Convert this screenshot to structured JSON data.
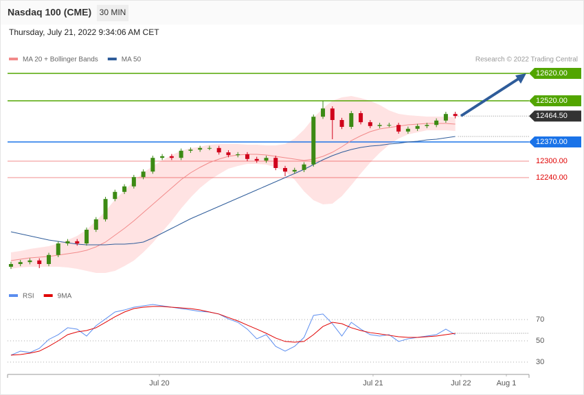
{
  "header": {
    "title": "Nasdaq 100 (CME)",
    "interval": "30 MIN",
    "timestamp": "Thursday, July 21, 2022 9:34:06 AM CET"
  },
  "chart_data": [
    {
      "type": "candlestick",
      "credit": "Research © 2022 Trading Central",
      "up_color": "#3c8a14",
      "down_color": "#d0021b",
      "ylim": [
        11850,
        12650
      ],
      "xlim": [
        -0.36,
        54.8
      ],
      "xticks": [
        {
          "value": 15.7,
          "label": "Jul 20"
        },
        {
          "value": 38.3,
          "label": "Jul 21"
        },
        {
          "value": 47.6,
          "label": "Jul 22"
        },
        {
          "value": 52.4,
          "label": "Aug 1"
        }
      ],
      "open": [
        11915,
        11925,
        11932,
        11938,
        11925,
        11958,
        12000,
        12008,
        12000,
        12050,
        12088,
        12162,
        12188,
        12208,
        12242,
        12262,
        12312,
        12318,
        12312,
        12338,
        12342,
        12348,
        12348,
        12332,
        12322,
        12325,
        12308,
        12302,
        12312,
        12275,
        12262,
        12268,
        12288,
        12462,
        12492,
        12450,
        12425,
        12475,
        12442,
        12428,
        12432,
        12432,
        12408,
        12418,
        12428,
        12432,
        12448,
        12472
      ],
      "high": [
        11933,
        11940,
        11946,
        11946,
        11966,
        12008,
        12016,
        12016,
        12058,
        12096,
        12170,
        12196,
        12216,
        12250,
        12270,
        12320,
        12326,
        12326,
        12346,
        12350,
        12356,
        12356,
        12356,
        12340,
        12333,
        12333,
        12316,
        12320,
        12320,
        12283,
        12276,
        12296,
        12470,
        12520,
        12500,
        12458,
        12483,
        12483,
        12450,
        12440,
        12440,
        12440,
        12426,
        12436,
        12440,
        12456,
        12480,
        12480
      ],
      "low": [
        11907,
        11917,
        11924,
        11910,
        11917,
        11950,
        11992,
        11992,
        11992,
        12042,
        12080,
        12154,
        12180,
        12200,
        12234,
        12254,
        12304,
        12304,
        12304,
        12330,
        12334,
        12340,
        12324,
        12314,
        12314,
        12300,
        12294,
        12294,
        12267,
        12245,
        12254,
        12260,
        12280,
        12454,
        12380,
        12417,
        12417,
        12434,
        12420,
        12420,
        12424,
        12400,
        12400,
        12410,
        12420,
        12424,
        12440,
        12456
      ],
      "close": [
        11925,
        11932,
        11938,
        11925,
        11958,
        12000,
        12008,
        12000,
        12050,
        12088,
        12162,
        12188,
        12208,
        12242,
        12262,
        12312,
        12318,
        12312,
        12338,
        12342,
        12348,
        12348,
        12332,
        12322,
        12325,
        12308,
        12302,
        12312,
        12275,
        12262,
        12268,
        12288,
        12462,
        12492,
        12450,
        12425,
        12475,
        12442,
        12428,
        12432,
        12432,
        12408,
        12418,
        12428,
        12432,
        12448,
        12472,
        12464.5
      ],
      "series": [
        {
          "name": "MA 20 + Bollinger Bands",
          "color": "#f28a8a",
          "band_color": "#ffe3e3",
          "values": [
            11937.5,
            11942.5,
            11947.5,
            11950,
            11952.5,
            11957.5,
            11962.5,
            11967.5,
            11975,
            11987.5,
            12005,
            12030,
            12055,
            12082.5,
            12112.5,
            12142.5,
            12172.5,
            12202.5,
            12232.5,
            12257.5,
            12277.5,
            12295,
            12307.5,
            12317.5,
            12322.5,
            12325,
            12325,
            12322.5,
            12317.5,
            12312.5,
            12307.5,
            12302.5,
            12307.5,
            12317.5,
            12332.5,
            12352.5,
            12375,
            12392.5,
            12407.5,
            12417.5,
            12422.5,
            12427.5,
            12432.5,
            12435,
            12437.5,
            12437.5,
            12437.5,
            12435
          ],
          "upper": [
            11967.5,
            11972.5,
            11980,
            11985,
            11990,
            12000,
            12012.5,
            12027.5,
            12050,
            12082.5,
            12117.5,
            12160,
            12192.5,
            12227.5,
            12257.5,
            12282.5,
            12302.5,
            12322.5,
            12337.5,
            12347.5,
            12352.5,
            12360,
            12362.5,
            12362.5,
            12362.5,
            12360,
            12360,
            12357.5,
            12357.5,
            12362.5,
            12382.5,
            12415,
            12457.5,
            12492.5,
            12520,
            12532.5,
            12537.5,
            12530,
            12520,
            12505,
            12485,
            12472.5,
            12467.5,
            12465,
            12462.5,
            12462.5,
            12462.5,
            12460
          ],
          "lower": [
            11907.5,
            11912.5,
            11915,
            11915,
            11915,
            11915,
            11912.5,
            11907.5,
            11900,
            11892.5,
            11892.5,
            11900,
            11917.5,
            11937.5,
            11967.5,
            12002.5,
            12042.5,
            12082.5,
            12127.5,
            12167.5,
            12202.5,
            12230,
            12252.5,
            12272.5,
            12282.5,
            12290,
            12290,
            12287.5,
            12277.5,
            12262.5,
            12232.5,
            12190,
            12157.5,
            12142.5,
            12145,
            12172.5,
            12212.5,
            12255,
            12295,
            12330,
            12360,
            12382.5,
            12397.5,
            12405,
            12412.5,
            12412.5,
            12412.5,
            12410
          ]
        },
        {
          "name": "MA 50",
          "color": "#2e5c9a",
          "values": [
            12042.5,
            12035,
            12027.5,
            12020,
            12012.5,
            12007.5,
            12002.5,
            11997.5,
            11995,
            11995,
            11995,
            11997.5,
            11997.5,
            12000,
            12005,
            12020,
            12037.5,
            12055,
            12072.5,
            12090,
            12105,
            12120,
            12135,
            12150,
            12165,
            12180,
            12195,
            12210,
            12225,
            12240,
            12255,
            12270,
            12287.5,
            12305,
            12320,
            12332.5,
            12342.5,
            12350,
            12355,
            12357.5,
            12362.5,
            12365,
            12370,
            12372.5,
            12377.5,
            12380,
            12385,
            12390
          ]
        }
      ],
      "levels": [
        {
          "value": 12620,
          "label": "12620.00",
          "color": "#52a500",
          "box": true
        },
        {
          "value": 12520,
          "label": "12520.00",
          "color": "#52a500",
          "box": true
        },
        {
          "value": 12370,
          "label": "12370.00",
          "color": "#1a73e8",
          "box": true
        },
        {
          "value": 12300,
          "label": "12300.00",
          "color": "#e00000",
          "box": false
        },
        {
          "value": 12240,
          "label": "12240.00",
          "color": "#e00000",
          "box": false
        }
      ],
      "last_price": {
        "value": 12464.5,
        "label": "12464.50",
        "color": "#333333"
      }
    },
    {
      "type": "line",
      "ylim": [
        20,
        90
      ],
      "yticks": [
        70,
        50,
        30
      ],
      "grid": true,
      "xlim": [
        -0.36,
        54.8
      ],
      "series": [
        {
          "name": "RSI",
          "color": "#5b8def",
          "values": [
            36.5,
            40.3,
            39.0,
            42.9,
            51.3,
            55.8,
            62.3,
            61.0,
            54.5,
            64.2,
            70.6,
            77.1,
            79.0,
            81.6,
            82.9,
            84.2,
            82.9,
            81.6,
            80.3,
            79.0,
            77.7,
            77.1,
            75.2,
            70.6,
            67.4,
            61.0,
            51.9,
            55.8,
            44.8,
            40.3,
            44.8,
            53.2,
            73.9,
            75.2,
            66.1,
            54.5,
            67.4,
            61.0,
            55.8,
            54.5,
            55.8,
            49.4,
            51.9,
            53.2,
            54.5,
            55.8,
            61.0,
            55.8
          ]
        },
        {
          "name": "9MA",
          "color": "#e00000",
          "values": [
            36.5,
            37.1,
            38.4,
            40.3,
            44.8,
            50,
            55.8,
            58.4,
            59.7,
            62.3,
            67.4,
            72.6,
            77.1,
            80.3,
            81.6,
            82.3,
            82.3,
            81.6,
            81.0,
            80.3,
            79.0,
            77.1,
            75.2,
            71.9,
            68.7,
            64.8,
            61.0,
            57.1,
            52.6,
            49.4,
            48.7,
            49.4,
            55.8,
            63.5,
            67.4,
            66.1,
            62.3,
            59.7,
            57.7,
            56.5,
            55.2,
            53.9,
            53.2,
            53.2,
            53.9,
            54.5,
            55.8,
            57.1
          ]
        }
      ]
    }
  ]
}
